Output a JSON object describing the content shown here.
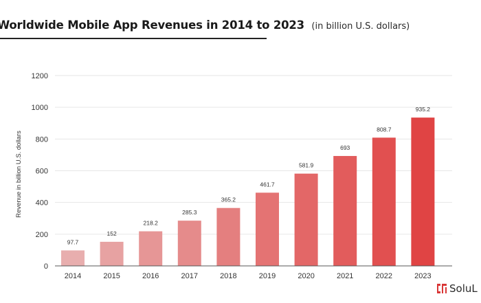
{
  "header": {
    "title": "Worldwide Mobile App Revenues in 2014 to 2023",
    "subtitle": "(in billion U.S. dollars)"
  },
  "logo": {
    "text": "SoluL"
  },
  "colors": {
    "bar_start": "#e8aeae",
    "bar_end": "#e04444",
    "grid": "#e6e6e6",
    "axis": "#555555",
    "label": "#333333"
  },
  "chart_data": {
    "type": "bar",
    "title": "Worldwide Mobile App Revenues in 2014 to 2023",
    "subtitle": "(in billion U.S. dollars)",
    "xlabel": "",
    "ylabel": "Revenue in billion U.S. dollars",
    "categories": [
      "2014",
      "2015",
      "2016",
      "2017",
      "2018",
      "2019",
      "2020",
      "2021",
      "2022",
      "2023"
    ],
    "series": [
      {
        "values": [
          97.7,
          152,
          218.2,
          285.3,
          365.2,
          461.7,
          581.9,
          693,
          808.7,
          935.2
        ]
      }
    ],
    "data_labels": [
      "97.7",
      "152",
      "218.2",
      "285.3",
      "365.2",
      "461.7",
      "581.9",
      "693",
      "808.7",
      "935.2"
    ],
    "ylim": [
      0,
      1200
    ],
    "yticks": [
      0,
      200,
      400,
      600,
      800,
      1000,
      1200
    ],
    "grid": true,
    "legend": "none"
  }
}
